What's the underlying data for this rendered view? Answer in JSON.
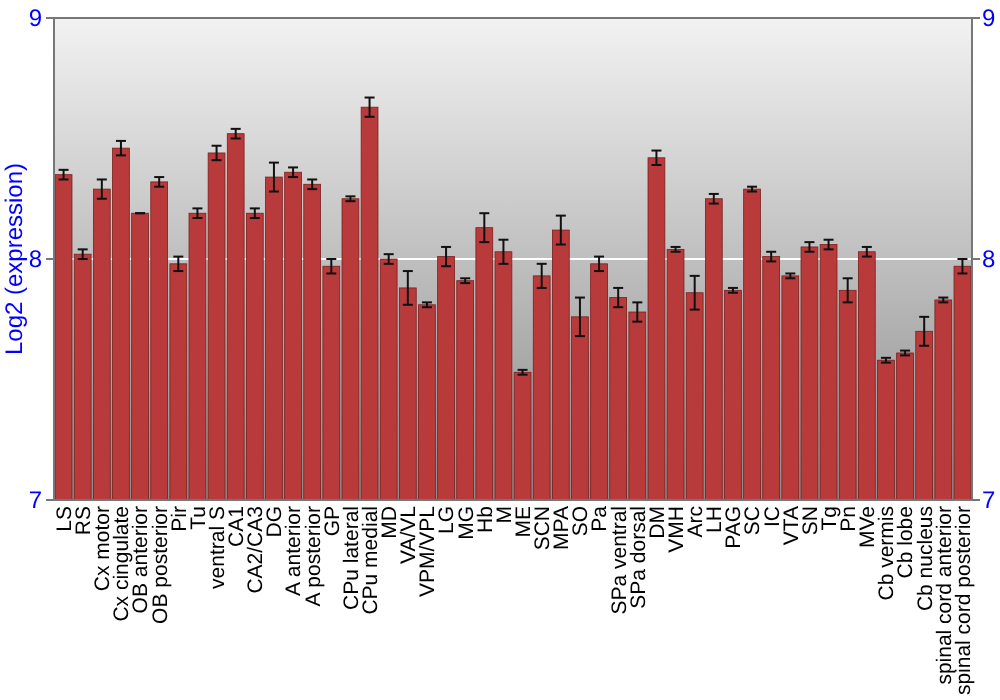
{
  "chart_data": {
    "type": "bar",
    "ylabel": "Log2 (expression)",
    "categories": [
      "LS",
      "RS",
      "Cx motor",
      "Cx cingulate",
      "OB anterior",
      "OB posterior",
      "Pir",
      "Tu",
      "ventral S",
      "CA1",
      "CA2/CA3",
      "DG",
      "A anterior",
      "A posterior",
      "GP",
      "CPu lateral",
      "CPu medial",
      "MD",
      "VA/VL",
      "VPM/VPL",
      "LG",
      "MG",
      "Hb",
      "M",
      "ME",
      "SCN",
      "MPA",
      "SO",
      "Pa",
      "SPa ventral",
      "SPa dorsal",
      "DM",
      "VMH",
      "Arc",
      "LH",
      "PAG",
      "SC",
      "IC",
      "VTA",
      "SN",
      "Tg",
      "Pn",
      "MVe",
      "Cb vermis",
      "Cb lobe",
      "Cb nucleus",
      "spinal cord anterior",
      "spinal cord posterior"
    ],
    "values": [
      8.35,
      8.02,
      8.29,
      8.46,
      8.19,
      8.32,
      7.98,
      8.19,
      8.44,
      8.52,
      8.19,
      8.34,
      8.36,
      8.31,
      7.97,
      8.25,
      8.63,
      8.0,
      7.88,
      7.81,
      8.01,
      7.91,
      8.13,
      8.03,
      7.53,
      7.93,
      8.12,
      7.76,
      7.98,
      7.84,
      7.78,
      8.42,
      8.04,
      7.86,
      8.25,
      7.87,
      8.29,
      8.01,
      7.93,
      8.05,
      8.06,
      7.87,
      8.03,
      7.58,
      7.61,
      7.7,
      7.83,
      7.97
    ],
    "errors": [
      0.02,
      0.02,
      0.04,
      0.03,
      0,
      0.02,
      0.03,
      0.02,
      0.03,
      0.02,
      0.02,
      0.06,
      0.02,
      0.02,
      0.03,
      0.01,
      0.04,
      0.02,
      0.07,
      0.01,
      0.04,
      0.01,
      0.06,
      0.05,
      0.01,
      0.05,
      0.06,
      0.08,
      0.03,
      0.04,
      0.04,
      0.03,
      0.01,
      0.07,
      0.02,
      0.01,
      0.01,
      0.02,
      0.01,
      0.02,
      0.02,
      0.05,
      0.02,
      0.01,
      0.01,
      0.06,
      0.01,
      0.03
    ],
    "color": "#b83a3a",
    "ylim": [
      7,
      9
    ],
    "yticks": [
      7,
      8,
      9
    ],
    "y2lim": [
      7,
      9
    ],
    "y2ticks": [
      7,
      8,
      9
    ],
    "grid": "y"
  }
}
